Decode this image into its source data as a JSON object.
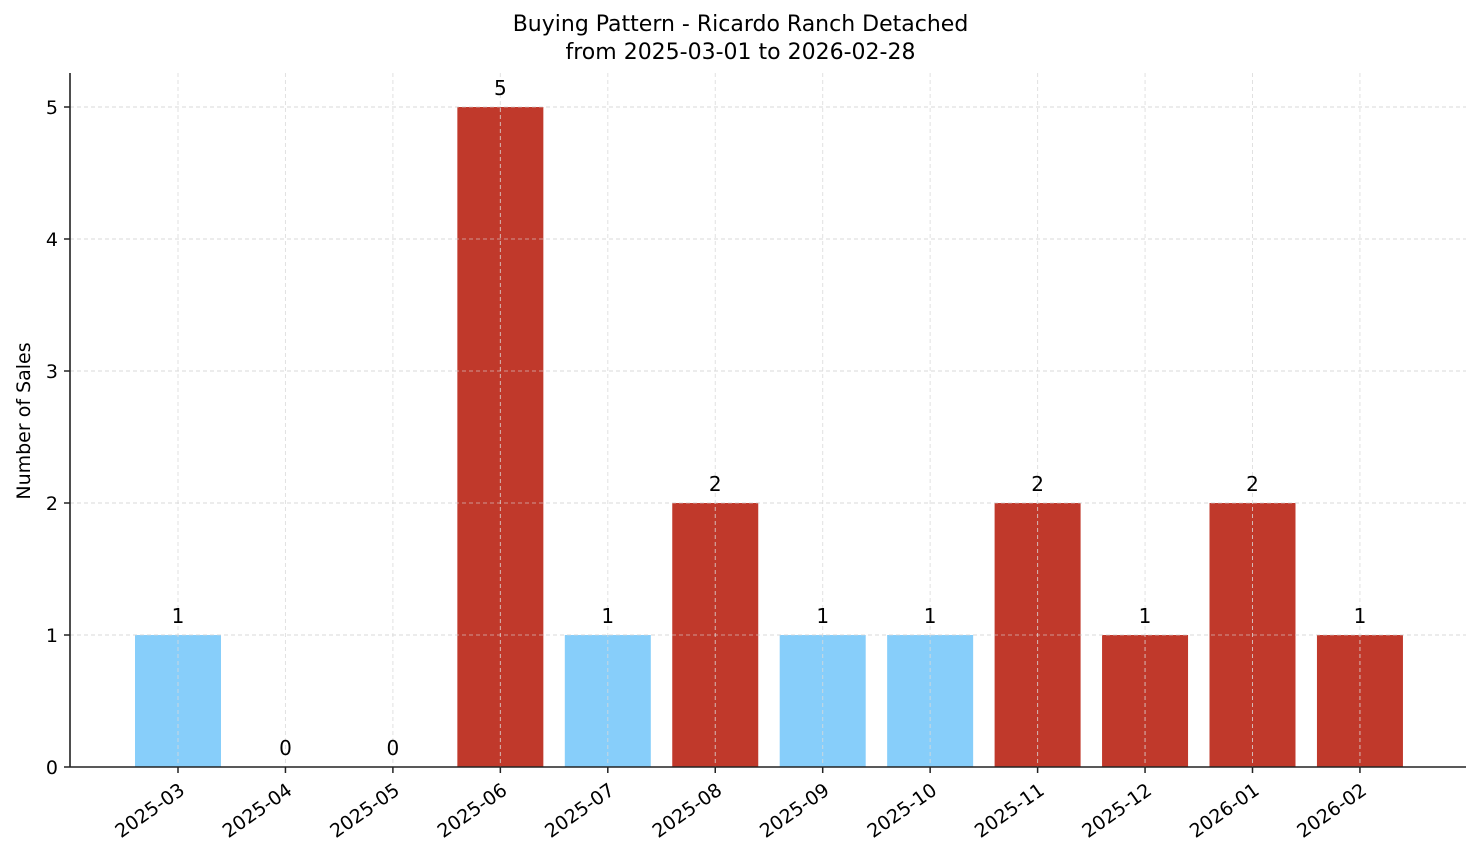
{
  "chart_data": {
    "type": "bar",
    "title": "Buying Pattern - Ricardo Ranch Detached",
    "subtitle": "from 2025-03-01 to 2026-02-28",
    "xlabel": "",
    "ylabel": "Number of Sales",
    "categories": [
      "2025-03",
      "2025-04",
      "2025-05",
      "2025-06",
      "2025-07",
      "2025-08",
      "2025-09",
      "2025-10",
      "2025-11",
      "2025-12",
      "2026-01",
      "2026-02"
    ],
    "values": [
      1,
      0,
      0,
      5,
      1,
      2,
      1,
      1,
      2,
      1,
      2,
      1
    ],
    "bar_colors": [
      "#87CEFA",
      "#87CEFA",
      "#87CEFA",
      "#C0392B",
      "#87CEFA",
      "#C0392B",
      "#87CEFA",
      "#87CEFA",
      "#C0392B",
      "#C0392B",
      "#C0392B",
      "#C0392B"
    ],
    "data_labels": [
      "1",
      "0",
      "0",
      "5",
      "1",
      "2",
      "1",
      "1",
      "2",
      "1",
      "2",
      "1"
    ],
    "yticks": [
      0,
      1,
      2,
      3,
      4,
      5
    ],
    "ylim": [
      0,
      5.25
    ],
    "grid": true,
    "grid_style": "dashed",
    "legend": null,
    "colors": {
      "light_blue": "#87CEFA",
      "red": "#C0392B",
      "grid": "#d9d9d9",
      "axis": "#222222"
    }
  }
}
